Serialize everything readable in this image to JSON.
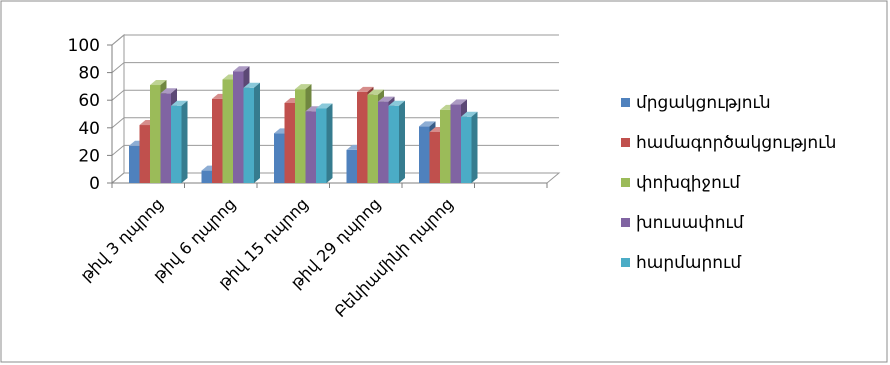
{
  "chart_data": {
    "type": "bar",
    "categories": [
      "թիվ 3 դպրոց",
      "թիվ 6 դպրոց",
      "թիվ 15 դպրոց",
      "թիվ 29 դպրոց",
      "Բենիամինի դպրոց"
    ],
    "series": [
      {
        "name": "մրցակցություն",
        "color": "#4f81bd",
        "values": [
          27,
          9,
          36,
          24,
          41
        ]
      },
      {
        "name": "համագործակցություն",
        "color": "#c0504d",
        "values": [
          42,
          61,
          58,
          66,
          37
        ]
      },
      {
        "name": "փոխզիջում",
        "color": "#9bbb59",
        "values": [
          71,
          75,
          68,
          64,
          53
        ]
      },
      {
        "name": "խուսափում",
        "color": "#8064a2",
        "values": [
          65,
          81,
          52,
          59,
          57
        ]
      },
      {
        "name": "հարմարում",
        "color": "#4bacc6",
        "values": [
          56,
          69,
          54,
          56,
          48
        ]
      }
    ],
    "yticks": [
      "0",
      "20",
      "40",
      "60",
      "80",
      "100"
    ],
    "ylim": [
      0,
      100
    ],
    "grid": true,
    "legend_position": "right"
  }
}
